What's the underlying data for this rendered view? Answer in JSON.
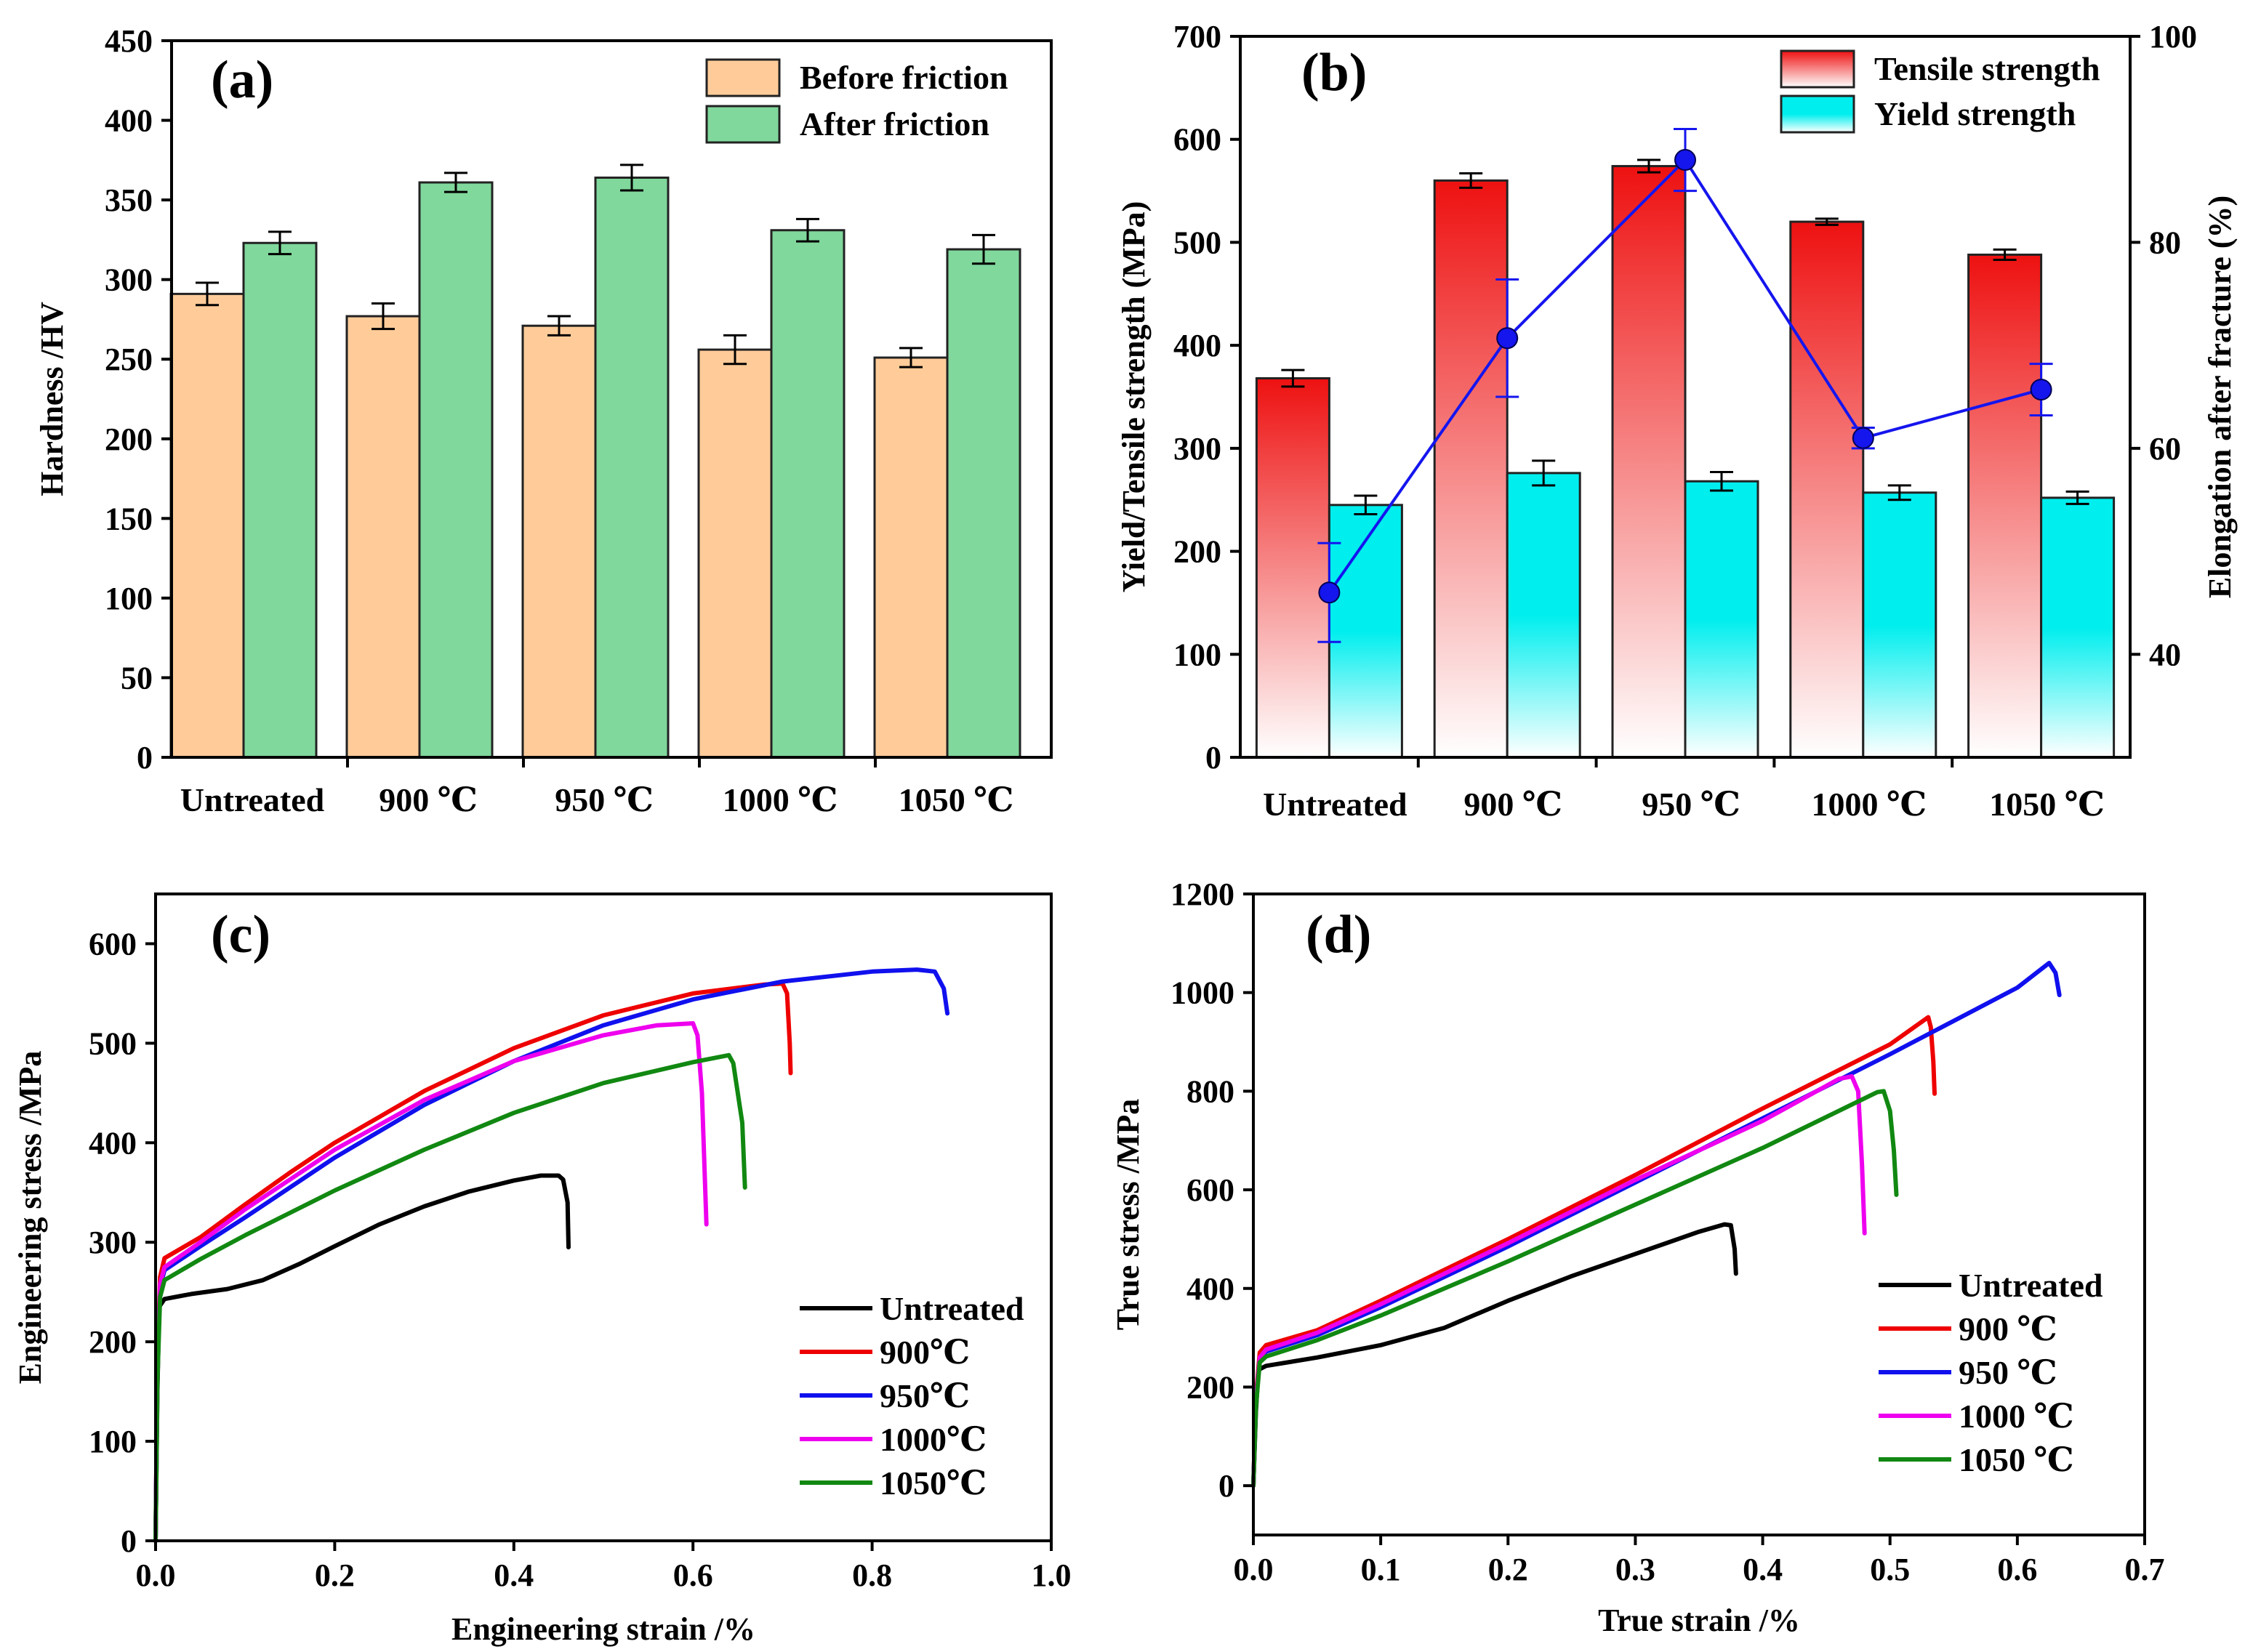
{
  "chart_data": [
    {
      "panel": "(a)",
      "type": "bar",
      "title": "",
      "xlabel": "",
      "ylabel": "Hardness /HV",
      "categories": [
        "Untreated",
        "900 ℃",
        "950 ℃",
        "1000 ℃",
        "1050 ℃"
      ],
      "series": [
        {
          "name": "Before friction",
          "color": "#FFCC99",
          "values": [
            291,
            277,
            271,
            256,
            251
          ],
          "errors": [
            7,
            8,
            6,
            9,
            6
          ]
        },
        {
          "name": "After friction",
          "color": "#80D89C",
          "values": [
            323,
            361,
            364,
            331,
            319
          ],
          "errors": [
            7,
            6,
            8,
            7,
            9
          ]
        }
      ],
      "ylim": [
        0,
        450
      ],
      "yticks": [
        0,
        50,
        100,
        150,
        200,
        250,
        300,
        350,
        400,
        450
      ],
      "legend": "top-right"
    },
    {
      "panel": "(b)",
      "type": "bar",
      "title": "",
      "xlabel": "",
      "ylabel": "Yield/Tensile strength (MPa)",
      "y2label": "Elongation after fracture (%)",
      "categories": [
        "Untreated",
        "900 ℃",
        "950 ℃",
        "1000 ℃",
        "1050 ℃"
      ],
      "series": [
        {
          "name": "Tensile strength",
          "color": "#EE1111",
          "values": [
            368,
            560,
            574,
            520,
            488
          ],
          "errors": [
            8,
            7,
            6,
            3,
            5
          ]
        },
        {
          "name": "Yield strength",
          "color": "#00EEEE",
          "values": [
            245,
            276,
            268,
            257,
            252
          ],
          "errors": [
            9,
            12,
            9,
            7,
            6
          ]
        }
      ],
      "line_series": {
        "name": "Elongation after fracture",
        "color": "#1515EE",
        "axis": "right",
        "values": [
          46.0,
          70.7,
          88.0,
          61.0,
          65.7
        ],
        "errors": [
          4.8,
          5.7,
          3.0,
          1.0,
          2.5
        ]
      },
      "ylim": [
        0,
        700
      ],
      "yticks": [
        0,
        100,
        200,
        300,
        400,
        500,
        600,
        700
      ],
      "y2lim": [
        30,
        100
      ],
      "y2ticks": [
        40,
        60,
        80,
        100
      ],
      "legend": "top-right"
    },
    {
      "panel": "(c)",
      "type": "line",
      "title": "",
      "xlabel": "Engineering strain /%",
      "ylabel": "Engineering stress /MPa",
      "xlim": [
        0,
        1.0
      ],
      "ylim": [
        0,
        650
      ],
      "xticks": [
        "0.0",
        "0.2",
        "0.4",
        "0.6",
        "0.8",
        "1.0"
      ],
      "yticks": [
        0,
        100,
        200,
        300,
        400,
        500,
        600
      ],
      "legend": "bottom-right",
      "series": [
        {
          "name": "Untreated",
          "color": "#000000",
          "points": [
            [
              0,
              0
            ],
            [
              0.002,
              150
            ],
            [
              0.004,
              235
            ],
            [
              0.01,
              243
            ],
            [
              0.04,
              248
            ],
            [
              0.08,
              253
            ],
            [
              0.12,
              262
            ],
            [
              0.16,
              278
            ],
            [
              0.2,
              296
            ],
            [
              0.25,
              318
            ],
            [
              0.3,
              336
            ],
            [
              0.35,
              351
            ],
            [
              0.4,
              362
            ],
            [
              0.43,
              367
            ],
            [
              0.45,
              367
            ],
            [
              0.455,
              363
            ],
            [
              0.46,
              340
            ],
            [
              0.461,
              295
            ]
          ]
        },
        {
          "name": "900℃",
          "color": "#EE0000",
          "points": [
            [
              0,
              0
            ],
            [
              0.002,
              180
            ],
            [
              0.005,
              265
            ],
            [
              0.01,
              284
            ],
            [
              0.05,
              305
            ],
            [
              0.1,
              338
            ],
            [
              0.15,
              370
            ],
            [
              0.2,
              400
            ],
            [
              0.3,
              452
            ],
            [
              0.4,
              495
            ],
            [
              0.5,
              528
            ],
            [
              0.6,
              550
            ],
            [
              0.68,
              559
            ],
            [
              0.7,
              560
            ],
            [
              0.705,
              550
            ],
            [
              0.708,
              500
            ],
            [
              0.709,
              470
            ]
          ]
        },
        {
          "name": "950℃",
          "color": "#1010EE",
          "points": [
            [
              0,
              0
            ],
            [
              0.002,
              170
            ],
            [
              0.005,
              255
            ],
            [
              0.01,
              272
            ],
            [
              0.05,
              296
            ],
            [
              0.1,
              325
            ],
            [
              0.2,
              385
            ],
            [
              0.3,
              438
            ],
            [
              0.4,
              482
            ],
            [
              0.5,
              518
            ],
            [
              0.6,
              544
            ],
            [
              0.7,
              562
            ],
            [
              0.8,
              572
            ],
            [
              0.85,
              574
            ],
            [
              0.87,
              572
            ],
            [
              0.88,
              555
            ],
            [
              0.884,
              530
            ]
          ]
        },
        {
          "name": "1000℃",
          "color": "#EE00EE",
          "points": [
            [
              0,
              0
            ],
            [
              0.002,
              170
            ],
            [
              0.005,
              258
            ],
            [
              0.01,
              275
            ],
            [
              0.05,
              300
            ],
            [
              0.1,
              333
            ],
            [
              0.2,
              393
            ],
            [
              0.3,
              443
            ],
            [
              0.4,
              482
            ],
            [
              0.5,
              508
            ],
            [
              0.56,
              518
            ],
            [
              0.6,
              520
            ],
            [
              0.605,
              508
            ],
            [
              0.61,
              450
            ],
            [
              0.615,
              318
            ]
          ]
        },
        {
          "name": "1050℃",
          "color": "#118811",
          "points": [
            [
              0,
              0
            ],
            [
              0.002,
              160
            ],
            [
              0.005,
              245
            ],
            [
              0.01,
              262
            ],
            [
              0.05,
              283
            ],
            [
              0.1,
              307
            ],
            [
              0.2,
              352
            ],
            [
              0.3,
              393
            ],
            [
              0.4,
              430
            ],
            [
              0.5,
              460
            ],
            [
              0.6,
              481
            ],
            [
              0.64,
              488
            ],
            [
              0.645,
              480
            ],
            [
              0.655,
              420
            ],
            [
              0.658,
              355
            ]
          ]
        }
      ]
    },
    {
      "panel": "(d)",
      "type": "line",
      "title": "",
      "xlabel": "True strain /%",
      "ylabel": "True stress /MPa",
      "xlim": [
        0,
        0.7
      ],
      "ylim": [
        -100,
        1200
      ],
      "xticks": [
        "0.0",
        "0.1",
        "0.2",
        "0.3",
        "0.4",
        "0.5",
        "0.6",
        "0.7"
      ],
      "yticks": [
        0,
        200,
        400,
        600,
        800,
        1000,
        1200
      ],
      "legend": "bottom-right",
      "series": [
        {
          "name": "Untreated",
          "color": "#000000",
          "points": [
            [
              0,
              0
            ],
            [
              0.002,
              150
            ],
            [
              0.004,
              235
            ],
            [
              0.01,
              243
            ],
            [
              0.05,
              260
            ],
            [
              0.1,
              285
            ],
            [
              0.15,
              320
            ],
            [
              0.2,
              375
            ],
            [
              0.25,
              425
            ],
            [
              0.3,
              470
            ],
            [
              0.35,
              515
            ],
            [
              0.37,
              530
            ],
            [
              0.375,
              528
            ],
            [
              0.378,
              480
            ],
            [
              0.379,
              430
            ]
          ]
        },
        {
          "name": "900 ℃",
          "color": "#EE0000",
          "points": [
            [
              0,
              0
            ],
            [
              0.002,
              180
            ],
            [
              0.005,
              270
            ],
            [
              0.01,
              285
            ],
            [
              0.05,
              315
            ],
            [
              0.1,
              375
            ],
            [
              0.2,
              500
            ],
            [
              0.3,
              630
            ],
            [
              0.4,
              765
            ],
            [
              0.5,
              895
            ],
            [
              0.53,
              950
            ],
            [
              0.532,
              930
            ],
            [
              0.534,
              860
            ],
            [
              0.535,
              795
            ]
          ]
        },
        {
          "name": "950 ℃",
          "color": "#1010EE",
          "points": [
            [
              0,
              0
            ],
            [
              0.002,
              170
            ],
            [
              0.005,
              258
            ],
            [
              0.01,
              272
            ],
            [
              0.05,
              305
            ],
            [
              0.1,
              362
            ],
            [
              0.2,
              485
            ],
            [
              0.3,
              615
            ],
            [
              0.4,
              745
            ],
            [
              0.5,
              875
            ],
            [
              0.6,
              1010
            ],
            [
              0.625,
              1060
            ],
            [
              0.63,
              1040
            ],
            [
              0.633,
              995
            ]
          ]
        },
        {
          "name": "1000 ℃",
          "color": "#EE00EE",
          "points": [
            [
              0,
              0
            ],
            [
              0.002,
              170
            ],
            [
              0.005,
              260
            ],
            [
              0.01,
              276
            ],
            [
              0.05,
              310
            ],
            [
              0.1,
              368
            ],
            [
              0.2,
              492
            ],
            [
              0.3,
              620
            ],
            [
              0.4,
              740
            ],
            [
              0.46,
              825
            ],
            [
              0.47,
              830
            ],
            [
              0.475,
              800
            ],
            [
              0.478,
              650
            ],
            [
              0.48,
              512
            ]
          ]
        },
        {
          "name": "1050 ℃",
          "color": "#118811",
          "points": [
            [
              0,
              0
            ],
            [
              0.002,
              160
            ],
            [
              0.005,
              250
            ],
            [
              0.01,
              262
            ],
            [
              0.05,
              295
            ],
            [
              0.1,
              345
            ],
            [
              0.2,
              455
            ],
            [
              0.3,
              570
            ],
            [
              0.4,
              685
            ],
            [
              0.49,
              798
            ],
            [
              0.495,
              800
            ],
            [
              0.5,
              760
            ],
            [
              0.503,
              680
            ],
            [
              0.505,
              590
            ]
          ]
        }
      ]
    }
  ]
}
